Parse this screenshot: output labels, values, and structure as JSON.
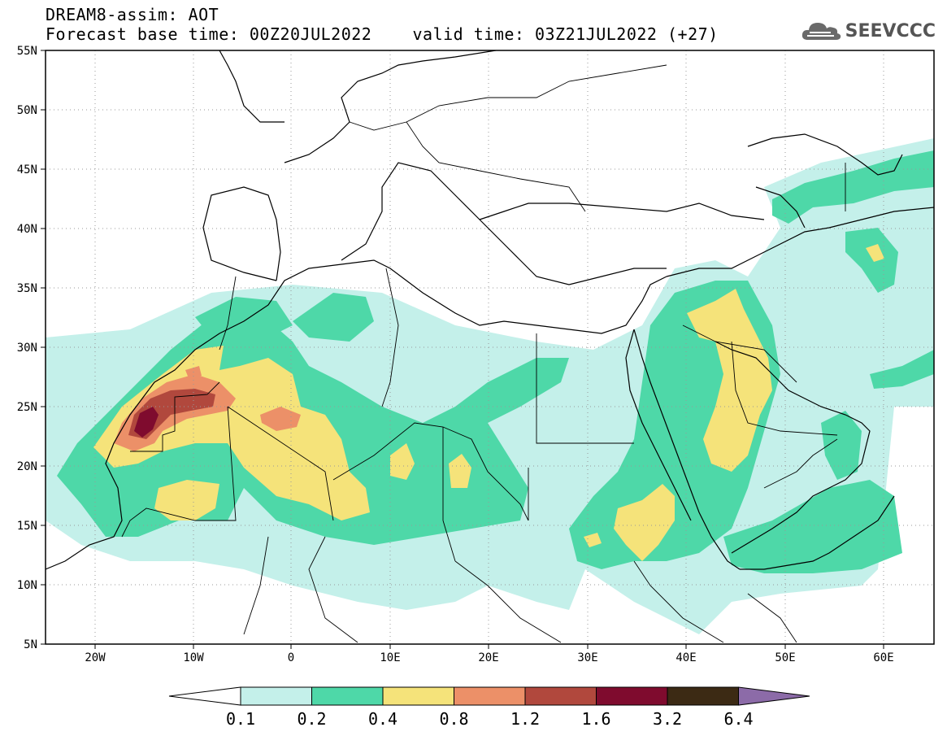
{
  "header": {
    "title": "DREAM8-assim: AOT",
    "base_time": "Forecast base time: 00Z20JUL2022",
    "valid_time": "valid time: 03Z21JUL2022 (+27)"
  },
  "logo": {
    "text": "SEEVCCC",
    "icon": "cloud-icon"
  },
  "map": {
    "lat_labels": [
      "55N",
      "50N",
      "45N",
      "40N",
      "35N",
      "30N",
      "25N",
      "20N",
      "15N",
      "10N",
      "5N"
    ],
    "lon_labels": [
      "20W",
      "10W",
      "0",
      "10E",
      "20E",
      "30E",
      "40E",
      "50E",
      "60E"
    ],
    "extent": {
      "lon": [
        -25,
        65
      ],
      "lat": [
        5,
        55
      ]
    },
    "grid": "dotted"
  },
  "colorbar": {
    "ticks": [
      "0.1",
      "0.2",
      "0.4",
      "0.8",
      "1.2",
      "1.6",
      "3.2",
      "6.4"
    ],
    "colors": [
      "#ffffff",
      "#c4f0ea",
      "#4ed8a8",
      "#f5e37a",
      "#ec9068",
      "#b1483d",
      "#7f0b2e",
      "#3c2a14",
      "#8c6ba8"
    ]
  }
}
